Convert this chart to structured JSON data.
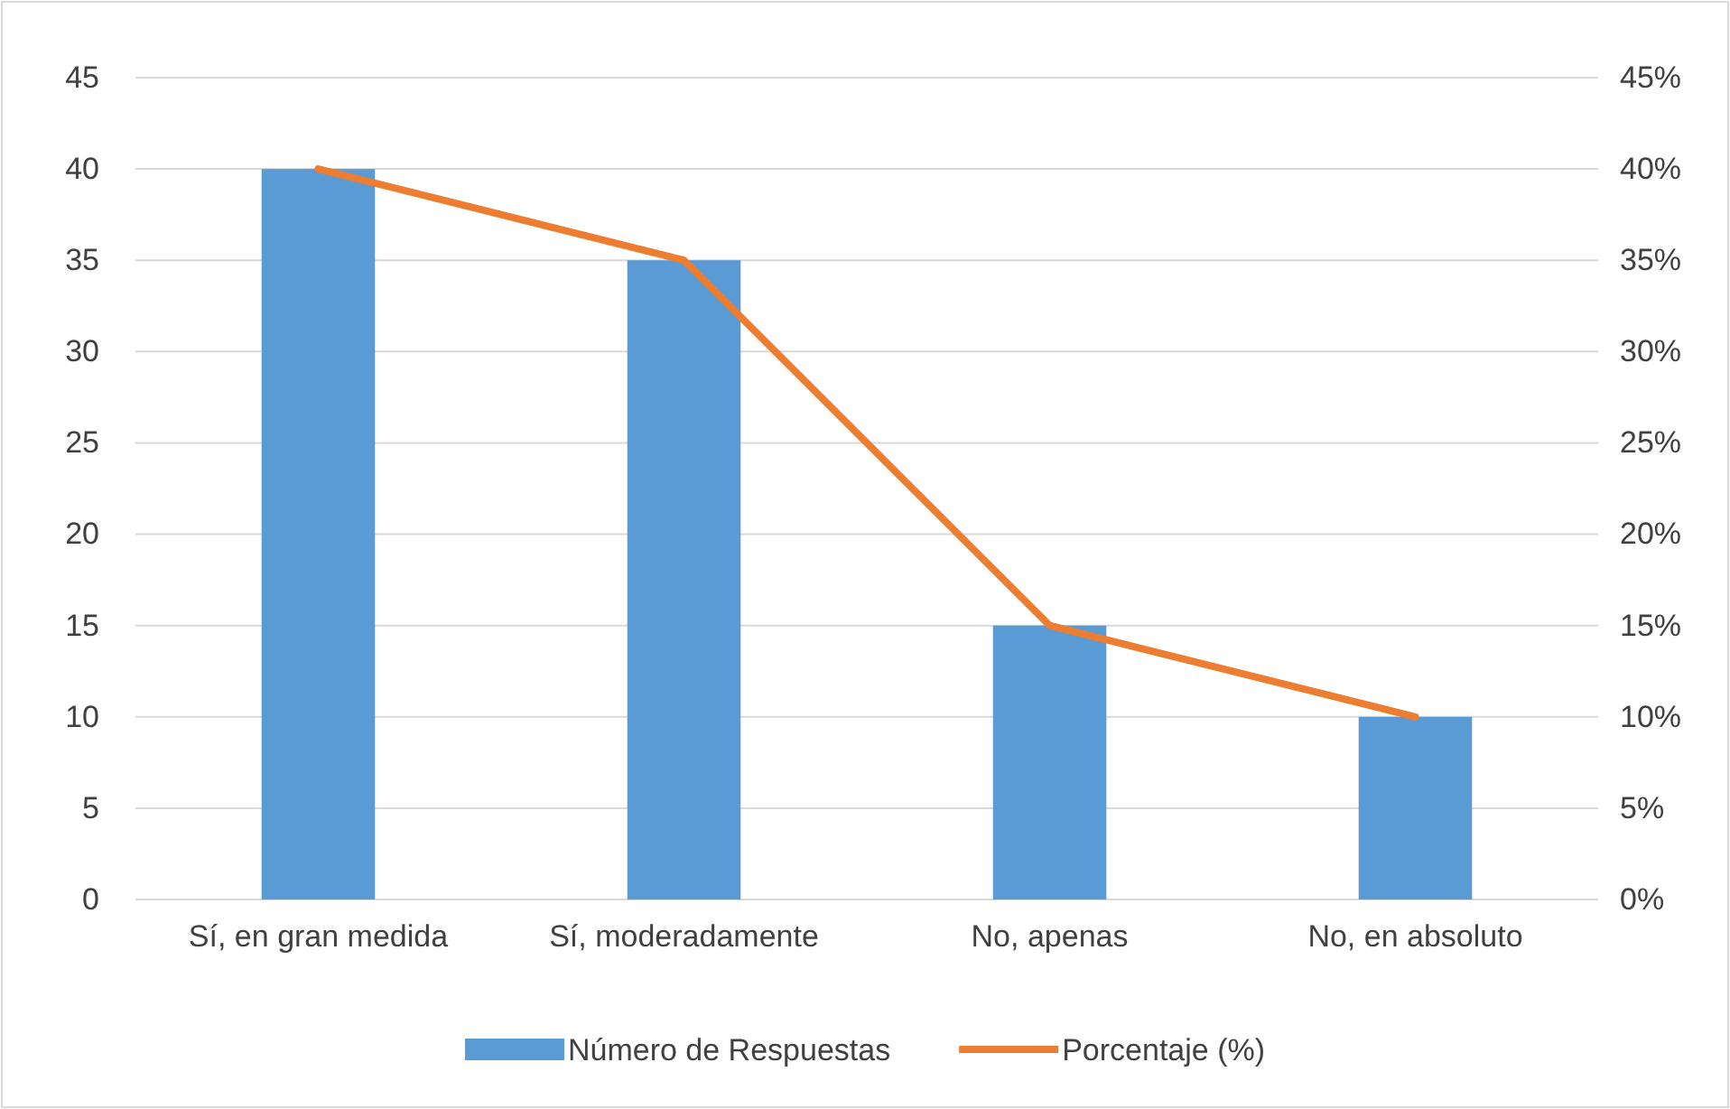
{
  "chart_data": {
    "type": "bar",
    "categories": [
      "Sí, en gran medida",
      "Sí, moderadamente",
      "No, apenas",
      "No, en absoluto"
    ],
    "series": [
      {
        "name": "Número de Respuestas",
        "color": "#5b9bd5",
        "values": [
          40,
          35,
          15,
          10
        ]
      },
      {
        "name": "Porcentaje (%)",
        "type": "line",
        "axis": "y2",
        "color": "#ed7d31",
        "values": [
          40,
          35,
          15,
          10
        ]
      }
    ],
    "ylim": [
      0,
      45
    ],
    "yticks": [
      0,
      5,
      10,
      15,
      20,
      25,
      30,
      35,
      40,
      45
    ],
    "y2lim": [
      0,
      45
    ],
    "y2ticks": [
      {
        "value": 0,
        "label": "0%"
      },
      {
        "value": 5,
        "label": "5%"
      },
      {
        "value": 10,
        "label": "10%"
      },
      {
        "value": 15,
        "label": "15%"
      },
      {
        "value": 20,
        "label": "20%"
      },
      {
        "value": 25,
        "label": "25%"
      },
      {
        "value": 30,
        "label": "30%"
      },
      {
        "value": 35,
        "label": "35%"
      },
      {
        "value": 40,
        "label": "40%"
      },
      {
        "value": 45,
        "label": "45%"
      }
    ],
    "grid": "y",
    "legend": "bottom",
    "marker": "none",
    "line_style": "solid"
  }
}
